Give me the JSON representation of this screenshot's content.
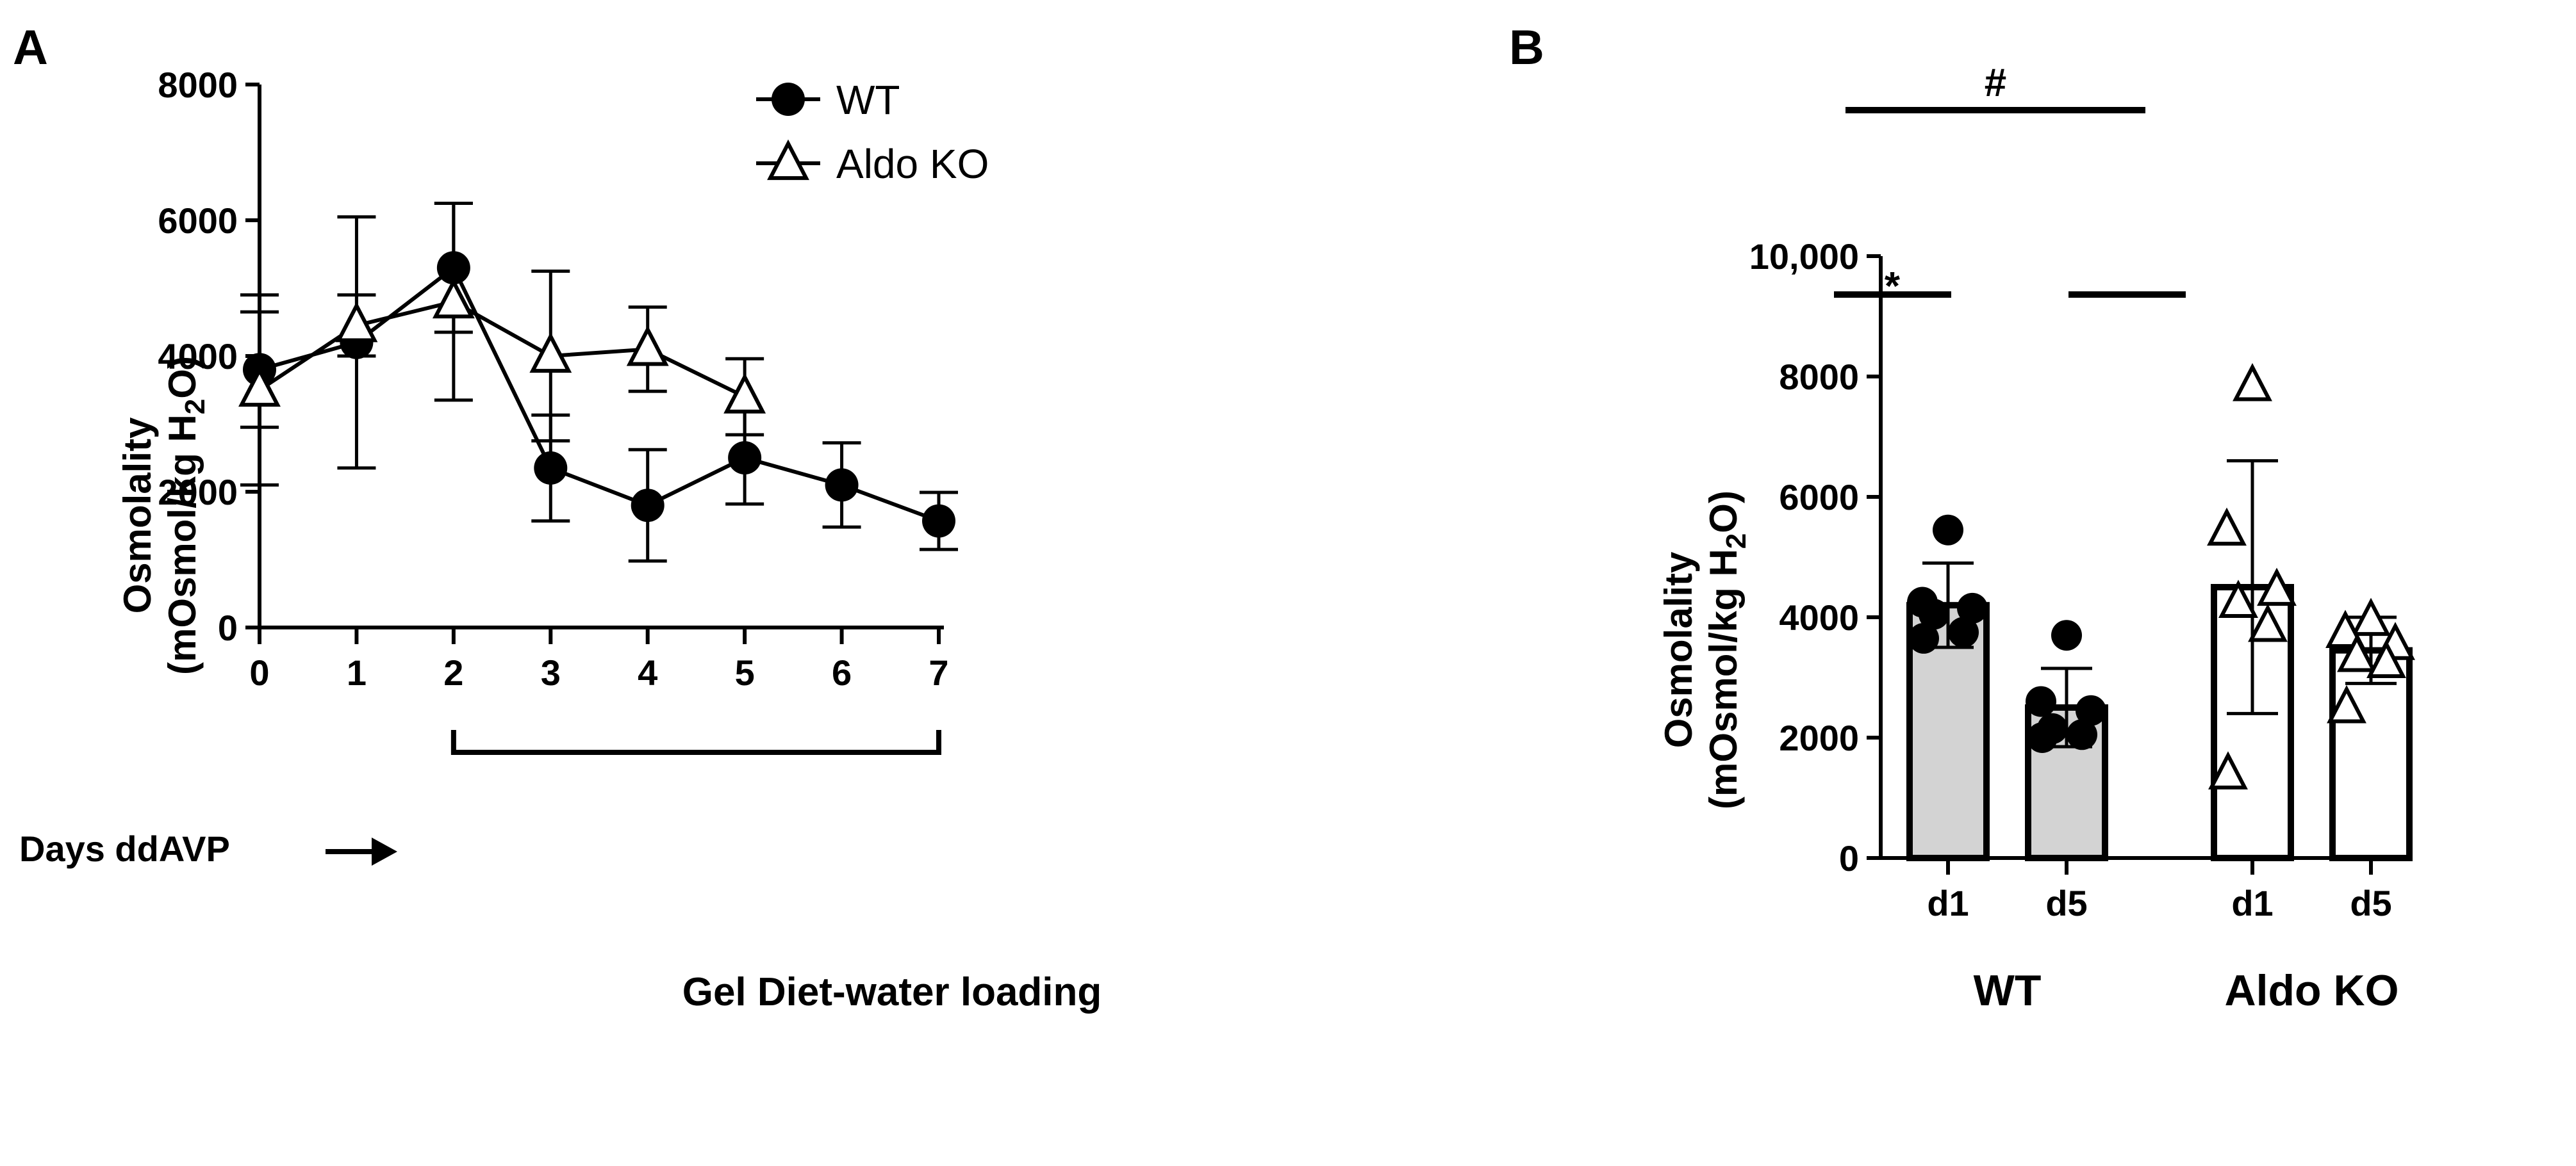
{
  "chart_data": [
    {
      "panel": "A",
      "type": "line",
      "title": "",
      "xlabel": "Days ddAVP",
      "ylabel": "Osmolality\n(mOsmol/kg H2O)",
      "ylabel_lines": [
        "Osmolality",
        "(mOsmol/kg H",
        "2",
        "O)"
      ],
      "ylim": [
        0,
        8000
      ],
      "yticks": [
        "0",
        "2000",
        "4000",
        "6000",
        "8000"
      ],
      "x": [
        0,
        1,
        2,
        3,
        4,
        5,
        6,
        7
      ],
      "xticks": [
        "0",
        "1",
        "2",
        "3",
        "4",
        "5",
        "6",
        "7"
      ],
      "series": [
        {
          "name": "WT",
          "marker": "filled-circle",
          "x": [
            0,
            1,
            2,
            3,
            4,
            5,
            6,
            7
          ],
          "values": [
            3800,
            4200,
            5300,
            2350,
            1800,
            2500,
            2100,
            1570
          ],
          "err": [
            850,
            1850,
            950,
            780,
            820,
            680,
            620,
            420
          ]
        },
        {
          "name": "Aldo KO",
          "marker": "open-triangle",
          "x": [
            0,
            1,
            2,
            3,
            4,
            5
          ],
          "values": [
            3500,
            4450,
            4800,
            4000,
            4100,
            3400
          ],
          "err": [
            1400,
            450,
            1450,
            1250,
            620,
            560
          ]
        }
      ],
      "legend": [
        "WT",
        "Aldo KO"
      ],
      "bracket_label": "Gel Diet-water loading",
      "bracket_range": [
        2,
        7
      ]
    },
    {
      "panel": "B",
      "type": "bar",
      "title": "",
      "ylabel": "Osmolality\n(mOsmol/kg H2O)",
      "ylabel_lines": [
        "Osmolality",
        "(mOsmol/kg H",
        "2",
        "O)"
      ],
      "ylim": [
        0,
        10000
      ],
      "yticks": [
        "0",
        "2000",
        "4000",
        "6000",
        "8000",
        "10,000"
      ],
      "categories": [
        "d1",
        "d5",
        "d1",
        "d5"
      ],
      "groups": [
        "WT",
        "Aldo KO"
      ],
      "bars": [
        {
          "group": "WT",
          "label": "d1",
          "value": 4200,
          "sd": 700,
          "fill": "gray",
          "points": [
            5450,
            4250,
            4150,
            4050,
            3750,
            3650
          ]
        },
        {
          "group": "WT",
          "label": "d5",
          "value": 2500,
          "sd": 650,
          "fill": "gray",
          "points": [
            3700,
            2600,
            2450,
            2150,
            2050,
            2000
          ]
        },
        {
          "group": "Aldo KO",
          "label": "d1",
          "value": 4500,
          "sd": 2100,
          "fill": "white",
          "points": [
            7850,
            5450,
            4450,
            4250,
            3850,
            1400
          ]
        },
        {
          "group": "Aldo KO",
          "label": "d5",
          "value": 3450,
          "sd": 550,
          "fill": "white",
          "points": [
            3950,
            3750,
            3550,
            3350,
            3250,
            2500
          ]
        }
      ],
      "significance": [
        {
          "label": "*",
          "between": [
            "WT d1",
            "WT d5"
          ]
        },
        {
          "label": "",
          "between": [
            "Aldo KO d1",
            "Aldo KO d5"
          ]
        },
        {
          "label": "#",
          "between": [
            "WT d5",
            "Aldo KO d5"
          ]
        }
      ]
    }
  ],
  "colors": {
    "ink": "#000000",
    "wt_bar_fill": "#d3d3d3",
    "ko_bar_fill": "#ffffff"
  }
}
